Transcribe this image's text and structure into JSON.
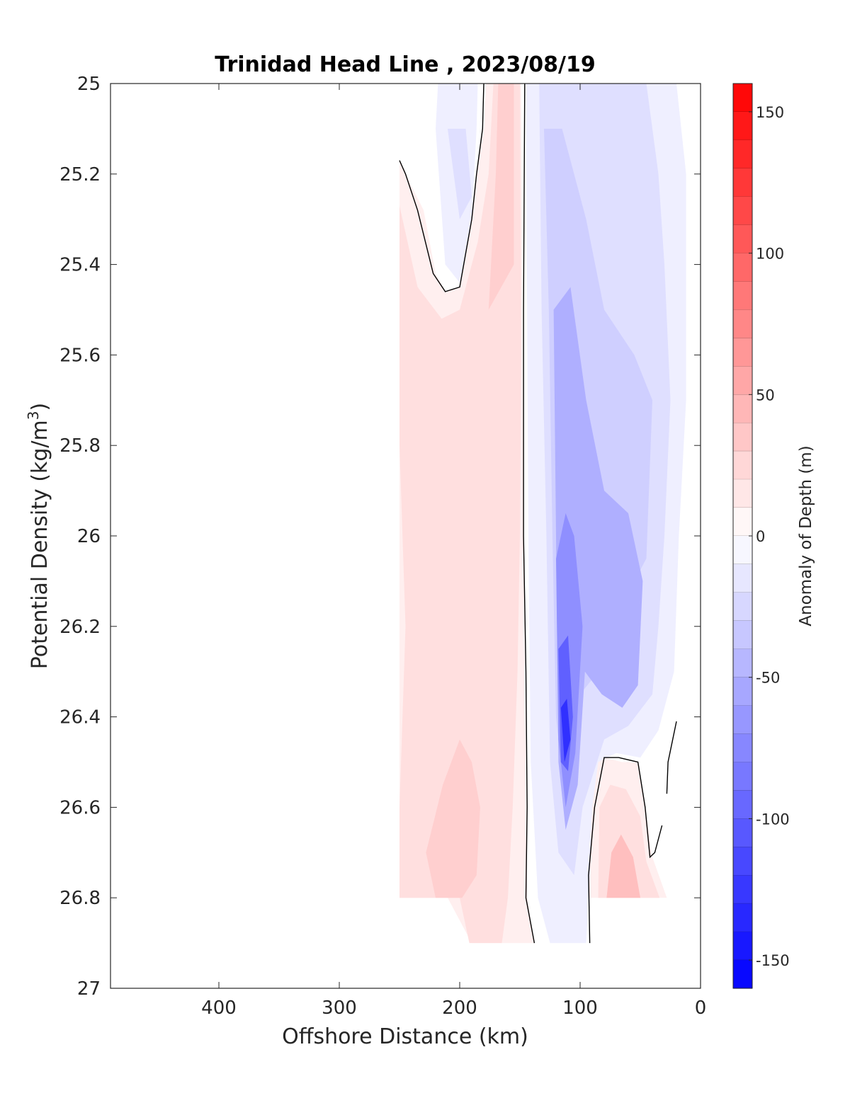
{
  "chart_data": {
    "type": "heatmap",
    "title": "Trinidad Head Line , 2023/08/19",
    "xlabel": "Offshore Distance (km)",
    "ylabel_main": "Potential Density (kg/m",
    "ylabel_sup": "3",
    "ylabel_close": ")",
    "colorbar_label": "Anomaly of Depth (m)",
    "xlim": [
      490,
      0
    ],
    "ylim": [
      25,
      27
    ],
    "y_reversed": true,
    "x_reversed": true,
    "clim": [
      -160,
      160
    ],
    "x_ticks": [
      {
        "value": 400,
        "label": "400"
      },
      {
        "value": 300,
        "label": "300"
      },
      {
        "value": 200,
        "label": "200"
      },
      {
        "value": 100,
        "label": "100"
      },
      {
        "value": 0,
        "label": "0"
      }
    ],
    "y_ticks": [
      {
        "value": 25,
        "label": "25"
      },
      {
        "value": 25.2,
        "label": "25.2"
      },
      {
        "value": 25.4,
        "label": "25.4"
      },
      {
        "value": 25.6,
        "label": "25.6"
      },
      {
        "value": 25.8,
        "label": "25.8"
      },
      {
        "value": 26,
        "label": "26"
      },
      {
        "value": 26.2,
        "label": "26.2"
      },
      {
        "value": 26.4,
        "label": "26.4"
      },
      {
        "value": 26.6,
        "label": "26.6"
      },
      {
        "value": 26.8,
        "label": "26.8"
      },
      {
        "value": 27,
        "label": "27"
      }
    ],
    "colorbar_ticks": [
      {
        "value": 150,
        "label": "150"
      },
      {
        "value": 100,
        "label": "100"
      },
      {
        "value": 50,
        "label": "50"
      },
      {
        "value": 0,
        "label": "0"
      },
      {
        "value": -50,
        "label": "-50"
      },
      {
        "value": -100,
        "label": "-100"
      },
      {
        "value": -150,
        "label": "-150"
      }
    ],
    "colorbar_step": 10,
    "colors": {
      "positive": "#ff0000",
      "negative": "#0000ff",
      "zero": "#ffffff",
      "contour": "#000000"
    },
    "regions": [
      {
        "value": 10,
        "points": [
          [
            250,
            25.17
          ],
          [
            245,
            25.2
          ],
          [
            230,
            25.28
          ],
          [
            220,
            25.42
          ],
          [
            212,
            25.46
          ],
          [
            200,
            25.45
          ],
          [
            190,
            25.3
          ],
          [
            186,
            25.2
          ],
          [
            180,
            25.1
          ],
          [
            178,
            25
          ],
          [
            149,
            25
          ],
          [
            148,
            25.6
          ],
          [
            147,
            26
          ],
          [
            146,
            26.3
          ],
          [
            145,
            26.5
          ],
          [
            144,
            26.8
          ],
          [
            138,
            26.9
          ],
          [
            190,
            26.9
          ],
          [
            210,
            26.8
          ],
          [
            250,
            26.8
          ]
        ]
      },
      {
        "value": 20,
        "points": [
          [
            250,
            25.27
          ],
          [
            235,
            25.45
          ],
          [
            215,
            25.52
          ],
          [
            200,
            25.5
          ],
          [
            185,
            25.35
          ],
          [
            176,
            25.2
          ],
          [
            172,
            25
          ],
          [
            150,
            25
          ],
          [
            149,
            25.6
          ],
          [
            150,
            26
          ],
          [
            152,
            26.3
          ],
          [
            156,
            26.6
          ],
          [
            160,
            26.8
          ],
          [
            165,
            26.9
          ],
          [
            192,
            26.9
          ],
          [
            200,
            26.8
          ],
          [
            250,
            26.8
          ],
          [
            250,
            26.6
          ],
          [
            245,
            26.2
          ],
          [
            250,
            25.8
          ]
        ]
      },
      {
        "value": 30,
        "points": [
          [
            200,
            26.45
          ],
          [
            214,
            26.55
          ],
          [
            228,
            26.7
          ],
          [
            220,
            26.8
          ],
          [
            198,
            26.8
          ],
          [
            186,
            26.75
          ],
          [
            183,
            26.6
          ],
          [
            190,
            26.5
          ]
        ]
      },
      {
        "value": 30,
        "points": [
          [
            176,
            25.5
          ],
          [
            170,
            25.2
          ],
          [
            168,
            25
          ],
          [
            155,
            25
          ],
          [
            155,
            25.4
          ]
        ]
      },
      {
        "value": 10,
        "points": [
          [
            90,
            26.5
          ],
          [
            80,
            26.49
          ],
          [
            65,
            26.5
          ],
          [
            52,
            26.5
          ],
          [
            46,
            26.6
          ],
          [
            40,
            26.71
          ],
          [
            28,
            26.8
          ],
          [
            93,
            26.8
          ],
          [
            92,
            26.7
          ]
        ]
      },
      {
        "value": 20,
        "points": [
          [
            84,
            26.6
          ],
          [
            75,
            26.55
          ],
          [
            62,
            26.56
          ],
          [
            50,
            26.62
          ],
          [
            45,
            26.72
          ],
          [
            34,
            26.8
          ],
          [
            85,
            26.8
          ]
        ]
      },
      {
        "value": 40,
        "points": [
          [
            74,
            26.7
          ],
          [
            66,
            26.66
          ],
          [
            56,
            26.71
          ],
          [
            50,
            26.8
          ],
          [
            78,
            26.8
          ]
        ]
      },
      {
        "value": -10,
        "points": [
          [
            145,
            25
          ],
          [
            143,
            26
          ],
          [
            141,
            26.5
          ],
          [
            135,
            26.8
          ],
          [
            125,
            26.9
          ],
          [
            95,
            26.9
          ],
          [
            92,
            26.75
          ],
          [
            90,
            26.6
          ],
          [
            85,
            26.5
          ],
          [
            70,
            26.48
          ],
          [
            50,
            26.49
          ],
          [
            35,
            26.43
          ],
          [
            22,
            26.3
          ],
          [
            18,
            26
          ],
          [
            12,
            25.7
          ],
          [
            12,
            25.2
          ],
          [
            20,
            25
          ],
          [
            100,
            25
          ]
        ]
      },
      {
        "value": -10,
        "points": [
          [
            218,
            25
          ],
          [
            220,
            25.1
          ],
          [
            212,
            25.4
          ],
          [
            200,
            25.44
          ],
          [
            190,
            25.3
          ],
          [
            186,
            25.1
          ],
          [
            185,
            25
          ]
        ]
      },
      {
        "value": -20,
        "points": [
          [
            210,
            25.1
          ],
          [
            200,
            25.3
          ],
          [
            190,
            25.25
          ],
          [
            195,
            25.1
          ]
        ]
      },
      {
        "value": -20,
        "points": [
          [
            134,
            25
          ],
          [
            132,
            25.5
          ],
          [
            128,
            26
          ],
          [
            125,
            26.5
          ],
          [
            118,
            26.7
          ],
          [
            105,
            26.75
          ],
          [
            98,
            26.6
          ],
          [
            80,
            26.45
          ],
          [
            60,
            26.42
          ],
          [
            40,
            26.35
          ],
          [
            35,
            26.2
          ],
          [
            30,
            26
          ],
          [
            25,
            25.7
          ],
          [
            30,
            25.4
          ],
          [
            35,
            25.2
          ],
          [
            45,
            25
          ]
        ]
      },
      {
        "value": -30,
        "points": [
          [
            130,
            25.1
          ],
          [
            126,
            25.5
          ],
          [
            123,
            26
          ],
          [
            120,
            26.4
          ],
          [
            114,
            26.55
          ],
          [
            104,
            26.5
          ],
          [
            100,
            26.35
          ],
          [
            85,
            26.3
          ],
          [
            75,
            26.2
          ],
          [
            45,
            26.05
          ],
          [
            40,
            25.7
          ],
          [
            55,
            25.6
          ],
          [
            80,
            25.5
          ],
          [
            95,
            25.3
          ],
          [
            115,
            25.1
          ]
        ]
      },
      {
        "value": -50,
        "points": [
          [
            122,
            25.5
          ],
          [
            120,
            26
          ],
          [
            118,
            26.5
          ],
          [
            112,
            26.65
          ],
          [
            102,
            26.55
          ],
          [
            96,
            26.3
          ],
          [
            82,
            26.35
          ],
          [
            65,
            26.38
          ],
          [
            52,
            26.33
          ],
          [
            48,
            26.1
          ],
          [
            60,
            25.95
          ],
          [
            80,
            25.9
          ],
          [
            95,
            25.7
          ],
          [
            108,
            25.45
          ]
        ]
      },
      {
        "value": -70,
        "points": [
          [
            120,
            26.05
          ],
          [
            118,
            26.45
          ],
          [
            112,
            26.6
          ],
          [
            104,
            26.48
          ],
          [
            98,
            26.2
          ],
          [
            105,
            26
          ],
          [
            112,
            25.95
          ]
        ]
      },
      {
        "value": -100,
        "points": [
          [
            118,
            26.25
          ],
          [
            116,
            26.5
          ],
          [
            110,
            26.52
          ],
          [
            106,
            26.4
          ],
          [
            110,
            26.22
          ]
        ]
      },
      {
        "value": -130,
        "points": [
          [
            116,
            26.38
          ],
          [
            113,
            26.5
          ],
          [
            108,
            26.45
          ],
          [
            111,
            26.36
          ]
        ]
      }
    ],
    "contours": [
      {
        "value": 0,
        "points": [
          [
            250,
            25.17
          ],
          [
            245,
            25.2
          ],
          [
            235,
            25.28
          ],
          [
            222,
            25.42
          ],
          [
            212,
            25.46
          ],
          [
            200,
            25.45
          ],
          [
            190,
            25.3
          ],
          [
            186,
            25.2
          ],
          [
            181,
            25.1
          ],
          [
            180,
            25
          ]
        ]
      },
      {
        "value": 0,
        "points": [
          [
            146,
            25
          ],
          [
            147,
            25.5
          ],
          [
            147,
            26
          ],
          [
            145,
            26.3
          ],
          [
            144,
            26.6
          ],
          [
            145,
            26.8
          ],
          [
            138,
            26.9
          ]
        ]
      },
      {
        "value": 0,
        "points": [
          [
            92,
            26.9
          ],
          [
            93,
            26.75
          ],
          [
            88,
            26.6
          ],
          [
            80,
            26.49
          ],
          [
            68,
            26.49
          ],
          [
            52,
            26.5
          ],
          [
            46,
            26.6
          ],
          [
            42,
            26.71
          ],
          [
            38,
            26.7
          ],
          [
            32,
            26.64
          ]
        ]
      },
      {
        "value": 0,
        "points": [
          [
            28,
            26.57
          ],
          [
            27,
            26.5
          ],
          [
            20,
            26.41
          ]
        ]
      }
    ]
  }
}
